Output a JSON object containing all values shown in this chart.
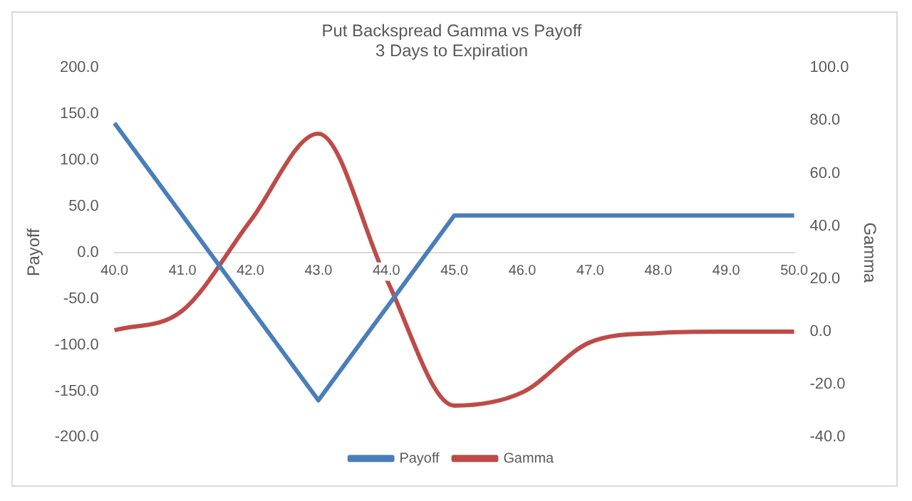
{
  "chart_data": {
    "type": "line",
    "title": "Put Backspread Gamma vs Payoff",
    "subtitle": "3 Days to Expiration",
    "ylabel": "Payoff",
    "y2label": "Gamma",
    "categories": [
      "40.0",
      "41.0",
      "42.0",
      "43.0",
      "44.0",
      "45.0",
      "46.0",
      "47.0",
      "48.0",
      "49.0",
      "50.0"
    ],
    "series": [
      {
        "name": "Payoff",
        "color": "#4a7ebb",
        "values": [
          140,
          40,
          -60,
          -160,
          -60,
          40,
          40,
          40,
          40,
          40,
          40
        ]
      },
      {
        "name": "Gamma",
        "color": "#be4b48",
        "axis": "y2",
        "values": [
          0.5,
          8,
          42,
          75,
          20,
          -28,
          -23,
          -4,
          -0.5,
          0,
          0
        ]
      }
    ],
    "ylim": [
      -200,
      200
    ],
    "yticks": [
      {
        "value": -200,
        "label": "-200.0"
      },
      {
        "value": -150,
        "label": "-150.0"
      },
      {
        "value": -100,
        "label": "-100.0"
      },
      {
        "value": -50,
        "label": "-50.0"
      },
      {
        "value": 0,
        "label": "0.0"
      },
      {
        "value": 50,
        "label": "50.0"
      },
      {
        "value": 100,
        "label": "100.0"
      },
      {
        "value": 150,
        "label": "150.0"
      },
      {
        "value": 200,
        "label": "200.0"
      }
    ],
    "y2lim": [
      -40,
      100
    ],
    "y2ticks": [
      {
        "value": -40,
        "label": "-40.0"
      },
      {
        "value": -20,
        "label": "-20.0"
      },
      {
        "value": 0,
        "label": "0.0"
      },
      {
        "value": 20,
        "label": "20.0"
      },
      {
        "value": 40,
        "label": "40.0"
      },
      {
        "value": 60,
        "label": "60.0"
      },
      {
        "value": 80,
        "label": "80.0"
      },
      {
        "value": 100,
        "label": "100.0"
      }
    ],
    "legend": "bottom",
    "grid": false,
    "marker": "none",
    "line_style": "solid"
  }
}
